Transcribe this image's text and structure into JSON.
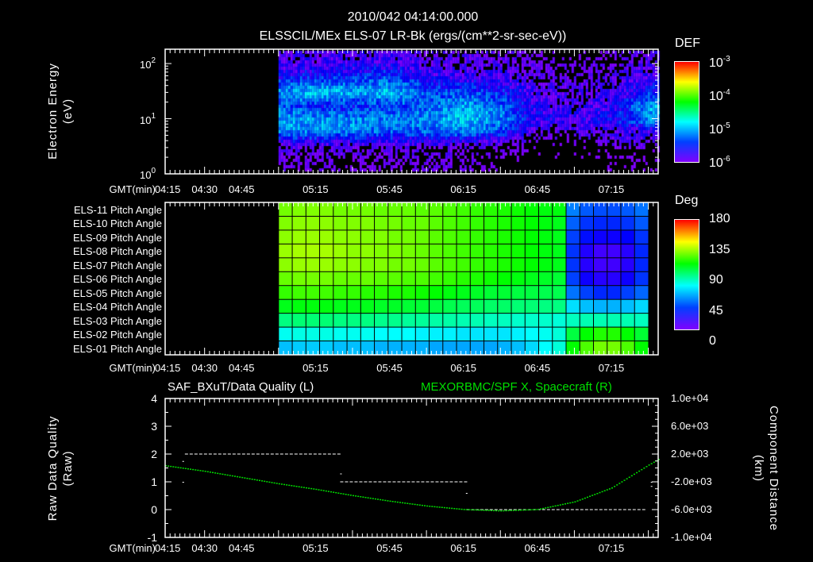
{
  "header": {
    "title": "2010/042 04:14:00.000",
    "subtitle": "ELSSCIL/MEx ELS-07 LR-Bk  (ergs/(cm**2-sr-sec-eV))"
  },
  "time_axis": {
    "label": "GMT(min)",
    "start_min": 254,
    "end_min": 454,
    "ticks": [
      {
        "label": "04:15",
        "min": 255
      },
      {
        "label": "04:30",
        "min": 270
      },
      {
        "label": "04:45",
        "min": 285
      },
      {
        "label": "05:15",
        "min": 315
      },
      {
        "label": "05:45",
        "min": 345
      },
      {
        "label": "06:15",
        "min": 375
      },
      {
        "label": "06:45",
        "min": 405
      },
      {
        "label": "07:15",
        "min": 435
      }
    ]
  },
  "chart_data": [
    {
      "type": "heatmap",
      "name": "electron-spectrogram",
      "ylabel_line1": "Electron Energy",
      "ylabel_line2": "(eV)",
      "yscale": "log",
      "ylim": [
        1,
        182
      ],
      "yticks": [
        {
          "base": "10",
          "exp": "0",
          "value": 1
        },
        {
          "base": "10",
          "exp": "1",
          "value": 10
        },
        {
          "base": "10",
          "exp": "2",
          "value": 100
        }
      ],
      "data_start_min": 300,
      "data_end_min": 453,
      "time_bins_min": [
        300,
        315,
        330,
        345,
        360,
        375,
        390,
        405,
        420,
        435,
        450
      ],
      "energy_bands_log10": [
        0.15,
        0.45,
        0.75,
        0.95,
        1.2,
        1.45,
        1.8,
        2.1
      ],
      "log10_def": [
        [
          -6.1,
          -6.1,
          -6.1,
          -6.1,
          -6.1,
          -6.1,
          -6.2,
          -6.3,
          -6.3,
          -6.2,
          -6.2
        ],
        [
          -6.0,
          -6.0,
          -6.0,
          -6.0,
          -6.0,
          -6.0,
          -6.1,
          -6.2,
          -6.2,
          -6.1,
          -6.1
        ],
        [
          -5.3,
          -5.3,
          -5.3,
          -5.4,
          -5.4,
          -5.3,
          -5.5,
          -6.0,
          -6.0,
          -5.9,
          -5.8
        ],
        [
          -5.2,
          -5.2,
          -5.3,
          -5.3,
          -5.3,
          -5.1,
          -5.3,
          -5.8,
          -5.8,
          -5.7,
          -5.3
        ],
        [
          -5.4,
          -5.6,
          -5.6,
          -5.5,
          -5.4,
          -5.2,
          -5.4,
          -5.8,
          -5.9,
          -5.8,
          -5.2
        ],
        [
          -5.3,
          -5.1,
          -5.2,
          -5.1,
          -5.5,
          -5.5,
          -5.6,
          -5.9,
          -6.0,
          -5.9,
          -5.6
        ],
        [
          -5.8,
          -5.7,
          -5.7,
          -5.6,
          -5.8,
          -5.9,
          -5.9,
          -6.0,
          -6.1,
          -6.0,
          -5.9
        ],
        [
          -5.9,
          -5.9,
          -5.9,
          -5.9,
          -6.0,
          -6.0,
          -6.0,
          -6.1,
          -6.2,
          -6.1,
          -6.0
        ]
      ],
      "colorbar": {
        "title": "DEF",
        "range_log10": [
          -6,
          -3
        ],
        "ticks": [
          {
            "base": "10",
            "exp": "-3"
          },
          {
            "base": "10",
            "exp": "-4"
          },
          {
            "base": "10",
            "exp": "-5"
          },
          {
            "base": "10",
            "exp": "-6"
          }
        ]
      }
    },
    {
      "type": "heatmap",
      "name": "pitch-angle",
      "data_start_min": 300,
      "data_end_min": 449,
      "colorbar": {
        "title": "Deg",
        "range": [
          0,
          180
        ],
        "ticks": [
          "180",
          "135",
          "90",
          "45",
          "0"
        ]
      },
      "rows": [
        {
          "label": "ELS-11 Pitch Angle",
          "values": [
            118,
            120,
            120,
            120,
            118,
            118,
            118,
            116,
            116,
            116,
            114,
            114,
            112,
            110,
            108,
            106,
            104,
            102,
            100,
            98,
            98,
            40,
            34,
            32,
            32,
            34,
            38
          ]
        },
        {
          "label": "ELS-10 Pitch Angle",
          "values": [
            120,
            122,
            122,
            122,
            120,
            120,
            120,
            118,
            118,
            116,
            116,
            114,
            112,
            110,
            108,
            106,
            104,
            102,
            100,
            98,
            96,
            35,
            28,
            26,
            26,
            28,
            34
          ]
        },
        {
          "label": "ELS-09 Pitch Angle",
          "values": [
            122,
            124,
            124,
            124,
            122,
            122,
            120,
            120,
            118,
            118,
            116,
            114,
            112,
            110,
            108,
            106,
            104,
            102,
            100,
            98,
            96,
            30,
            22,
            18,
            18,
            20,
            28
          ]
        },
        {
          "label": "ELS-08 Pitch Angle",
          "values": [
            124,
            126,
            126,
            126,
            124,
            122,
            122,
            120,
            120,
            118,
            116,
            114,
            112,
            110,
            108,
            106,
            104,
            102,
            100,
            98,
            96,
            28,
            15,
            10,
            10,
            14,
            26
          ]
        },
        {
          "label": "ELS-07 Pitch Angle",
          "values": [
            122,
            124,
            124,
            124,
            122,
            122,
            120,
            120,
            118,
            118,
            116,
            114,
            112,
            110,
            108,
            106,
            104,
            102,
            100,
            98,
            96,
            28,
            14,
            10,
            10,
            14,
            26
          ]
        },
        {
          "label": "ELS-06 Pitch Angle",
          "values": [
            116,
            118,
            118,
            118,
            116,
            116,
            116,
            114,
            114,
            112,
            112,
            110,
            108,
            106,
            104,
            102,
            100,
            98,
            96,
            94,
            92,
            30,
            18,
            14,
            14,
            18,
            28
          ]
        },
        {
          "label": "ELS-05 Pitch Angle",
          "values": [
            108,
            110,
            110,
            110,
            108,
            108,
            106,
            106,
            104,
            104,
            102,
            100,
            98,
            96,
            94,
            92,
            92,
            90,
            90,
            88,
            88,
            38,
            30,
            26,
            26,
            30,
            36
          ]
        },
        {
          "label": "ELS-04 Pitch Angle",
          "values": [
            96,
            98,
            98,
            98,
            96,
            96,
            96,
            94,
            94,
            92,
            92,
            90,
            88,
            86,
            86,
            84,
            84,
            82,
            82,
            80,
            80,
            55,
            50,
            48,
            48,
            50,
            54
          ]
        },
        {
          "label": "ELS-03 Pitch Angle",
          "values": [
            80,
            82,
            82,
            82,
            80,
            80,
            80,
            78,
            78,
            76,
            76,
            74,
            74,
            72,
            72,
            70,
            70,
            68,
            68,
            68,
            66,
            70,
            72,
            72,
            72,
            72,
            70
          ]
        },
        {
          "label": "ELS-02 Pitch Angle",
          "values": [
            62,
            64,
            64,
            64,
            62,
            62,
            62,
            60,
            60,
            60,
            58,
            58,
            58,
            56,
            56,
            56,
            56,
            58,
            60,
            62,
            66,
            90,
            100,
            105,
            105,
            100,
            92
          ]
        },
        {
          "label": "ELS-01 Pitch Angle",
          "values": [
            50,
            52,
            52,
            52,
            50,
            50,
            50,
            48,
            48,
            48,
            48,
            46,
            46,
            46,
            46,
            46,
            48,
            50,
            54,
            60,
            66,
            100,
            112,
            118,
            118,
            112,
            100
          ]
        }
      ]
    },
    {
      "type": "line",
      "name": "data-quality-and-position",
      "title_left": "SAF_BXuT/Data Quality (L)",
      "title_right": "MEXORBMC/SPF X, Spacecraft (R)",
      "ylabel_left_line1": "Raw Data Quality",
      "ylabel_left_line2": "(Raw)",
      "ylabel_right_line1": "Component Distance",
      "ylabel_right_line2": "(km)",
      "ylim_left": [
        -1,
        4
      ],
      "yticks_left": [
        "4",
        "3",
        "2",
        "1",
        "0",
        "-1"
      ],
      "ylim_right": [
        -10000,
        10000
      ],
      "yticks_right": [
        "1.0e+04",
        "6.0e+03",
        "2.0e+03",
        "-2.0e+03",
        "-6.0e+03",
        "-1.0e+04"
      ],
      "quality_segments": [
        {
          "start_min": 262,
          "end_min": 325,
          "value": 2
        },
        {
          "start_min": 325,
          "end_min": 376,
          "value": 1
        },
        {
          "start_min": 376,
          "end_min": 448,
          "value": 0
        }
      ],
      "quality_points": [
        {
          "min": 261,
          "value": 1
        },
        {
          "min": 261,
          "value": 1.75
        },
        {
          "min": 325,
          "value": 1.3
        },
        {
          "min": 376,
          "value": 0.6
        },
        {
          "min": 451,
          "value": 1
        },
        {
          "min": 451,
          "value": 0.85
        }
      ],
      "position_series": {
        "color": "#00e000",
        "x_min": [
          254,
          270,
          285,
          300,
          315,
          330,
          345,
          360,
          375,
          390,
          405,
          420,
          435,
          450,
          454
        ],
        "y_km": [
          400,
          -400,
          -1300,
          -2200,
          -3000,
          -3900,
          -4700,
          -5400,
          -5900,
          -6100,
          -5900,
          -4800,
          -2800,
          500,
          1300
        ]
      }
    }
  ]
}
